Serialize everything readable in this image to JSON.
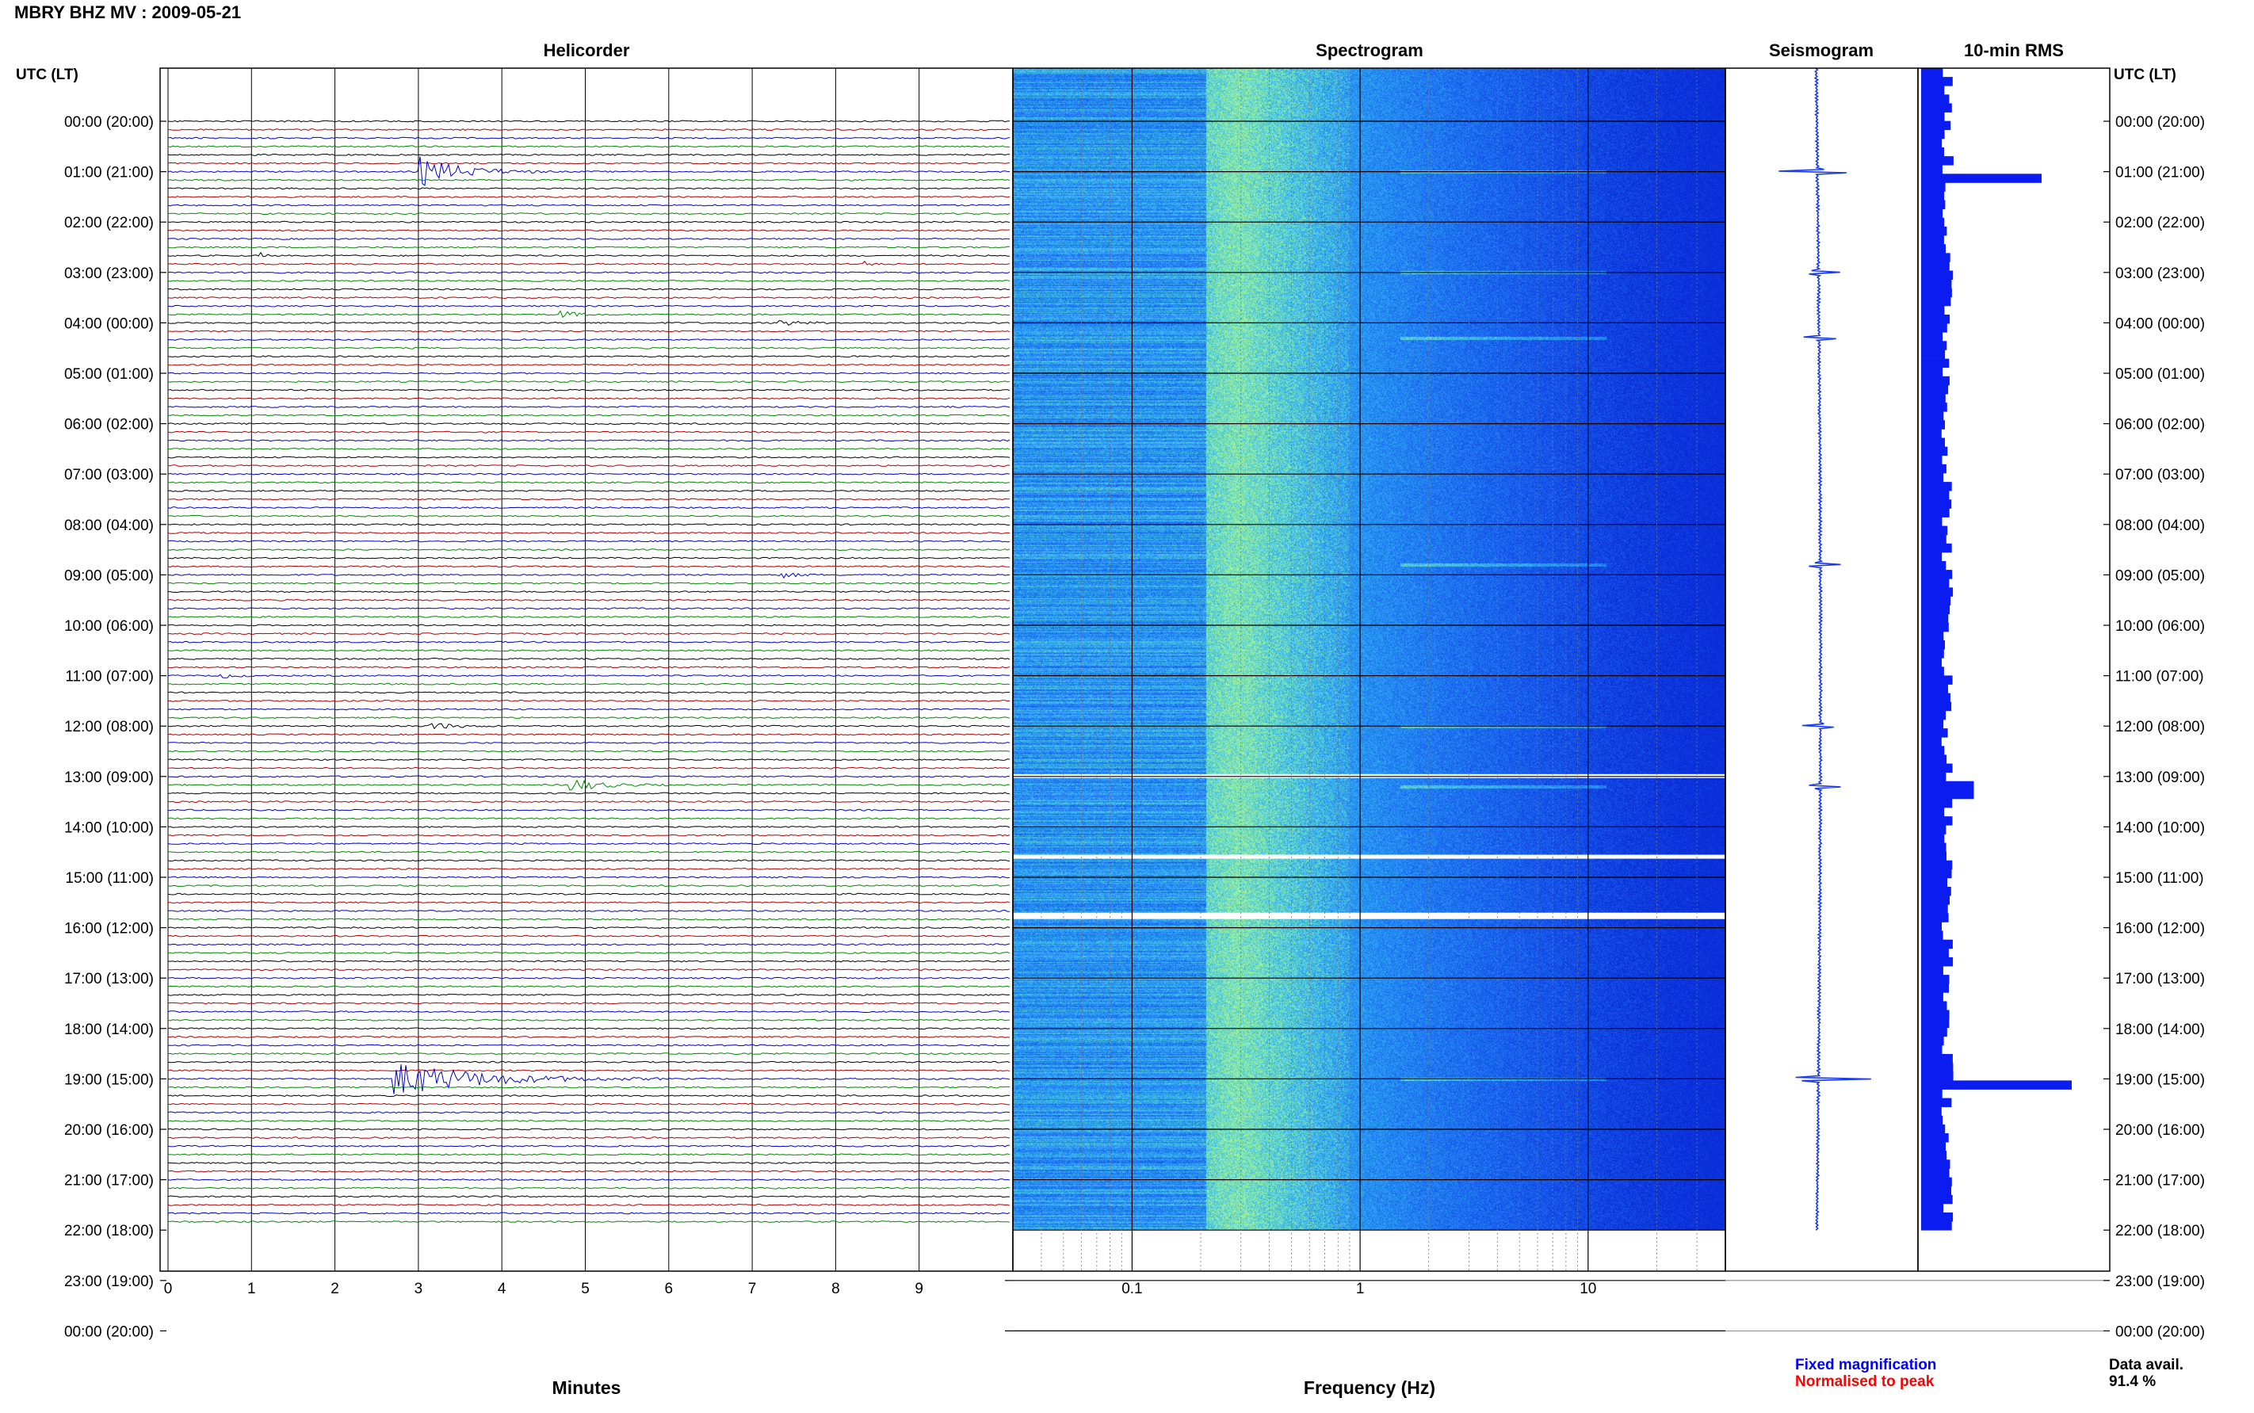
{
  "header": {
    "title": "MBRY BHZ MV : 2009-05-21"
  },
  "colors": {
    "trace_cycle": [
      "#000000",
      "#b00000",
      "#0000cc",
      "#008800"
    ],
    "rms_bar": "#0a1cf0",
    "seismogram": "#1a3ae8",
    "fixed_magnification": "#0000ff",
    "normalised_to_peak": "#ff0000",
    "spectrogram_palette": [
      "#0a2bd8",
      "#1a63ef",
      "#2fb0f4",
      "#8ef0a8",
      "#d6f56a"
    ]
  },
  "chart_data": [
    {
      "type": "line",
      "title": "Helicorder",
      "xlabel": "Minutes",
      "ylabel": "UTC (LT)",
      "xlim": [
        0,
        10
      ],
      "x_ticks": [
        "0",
        "1",
        "2",
        "3",
        "4",
        "5",
        "6",
        "7",
        "8",
        "9"
      ],
      "y_ticks": [
        "00:00 (20:00)",
        "01:00 (21:00)",
        "02:00 (22:00)",
        "03:00 (23:00)",
        "04:00 (00:00)",
        "05:00 (01:00)",
        "06:00 (02:00)",
        "07:00 (03:00)",
        "08:00 (04:00)",
        "09:00 (05:00)",
        "10:00 (06:00)",
        "11:00 (07:00)",
        "12:00 (08:00)",
        "13:00 (09:00)",
        "14:00 (10:00)",
        "15:00 (11:00)",
        "16:00 (12:00)",
        "17:00 (13:00)",
        "18:00 (14:00)",
        "19:00 (15:00)",
        "20:00 (16:00)",
        "21:00 (17:00)",
        "22:00 (18:00)",
        "23:00 (19:00)",
        "00:00 (20:00)"
      ],
      "rows_per_hour": 6,
      "data_hours": 22,
      "events": [
        {
          "utc": "01:00",
          "row": 6,
          "minute": 3.0,
          "duration_min": 1.6,
          "amplitude": 2.2
        },
        {
          "utc": "03:00",
          "row": 16,
          "minute": 1.1,
          "duration_min": 0.2,
          "amplitude": 0.5
        },
        {
          "utc": "03:00",
          "row": 17,
          "minute": 8.3,
          "duration_min": 0.3,
          "amplitude": 0.7
        },
        {
          "utc": "04:00",
          "row": 23,
          "minute": 4.7,
          "duration_min": 0.6,
          "amplitude": 0.6
        },
        {
          "utc": "04:00",
          "row": 24,
          "minute": 7.3,
          "duration_min": 0.7,
          "amplitude": 0.5
        },
        {
          "utc": "08:00",
          "row": 54,
          "minute": 7.3,
          "duration_min": 0.7,
          "amplitude": 0.5
        },
        {
          "utc": "10:00",
          "row": 66,
          "minute": 0.6,
          "duration_min": 0.6,
          "amplitude": 0.4
        },
        {
          "utc": "12:00",
          "row": 72,
          "minute": 3.1,
          "duration_min": 0.9,
          "amplitude": 0.6
        },
        {
          "utc": "13:00",
          "row": 79,
          "minute": 4.8,
          "duration_min": 1.2,
          "amplitude": 1.0
        },
        {
          "utc": "18:00",
          "row": 114,
          "minute": 2.7,
          "duration_min": 3.2,
          "amplitude": 2.6
        }
      ]
    },
    {
      "type": "heatmap",
      "title": "Spectrogram",
      "xlabel": "Frequency (Hz)",
      "x_scale": "log",
      "xlim": [
        0.03,
        40
      ],
      "x_ticks": [
        0.1,
        1,
        10
      ],
      "x_tick_labels": [
        "0.1",
        "1",
        "10"
      ],
      "y_ticks_hours": [
        0,
        1,
        2,
        3,
        4,
        5,
        6,
        7,
        8,
        9,
        10,
        11,
        12,
        13,
        14,
        15,
        16,
        17,
        18,
        19,
        20,
        21,
        22,
        23,
        24
      ],
      "peak_band_hz": [
        0.2,
        0.9
      ],
      "data_gaps_hours": [
        13.0,
        14.6,
        15.75
      ]
    },
    {
      "type": "line",
      "title": "Seismogram",
      "events_hours": [
        1.0,
        3.0,
        4.3,
        8.8,
        12.0,
        13.2,
        19.0
      ]
    },
    {
      "type": "bar",
      "title": "10-min RMS",
      "bar_count": 132,
      "peaks": [
        {
          "hour": 1.0,
          "relative": 0.8
        },
        {
          "hour": 13.2,
          "relative": 0.35
        },
        {
          "hour": 19.0,
          "relative": 1.0
        }
      ],
      "baseline_relative": 0.18
    }
  ],
  "footer": {
    "fixed_magnification": "Fixed magnification",
    "normalised_to_peak": "Normalised to peak",
    "data_avail_label": "Data avail.",
    "data_avail_value": "91.4 %"
  }
}
